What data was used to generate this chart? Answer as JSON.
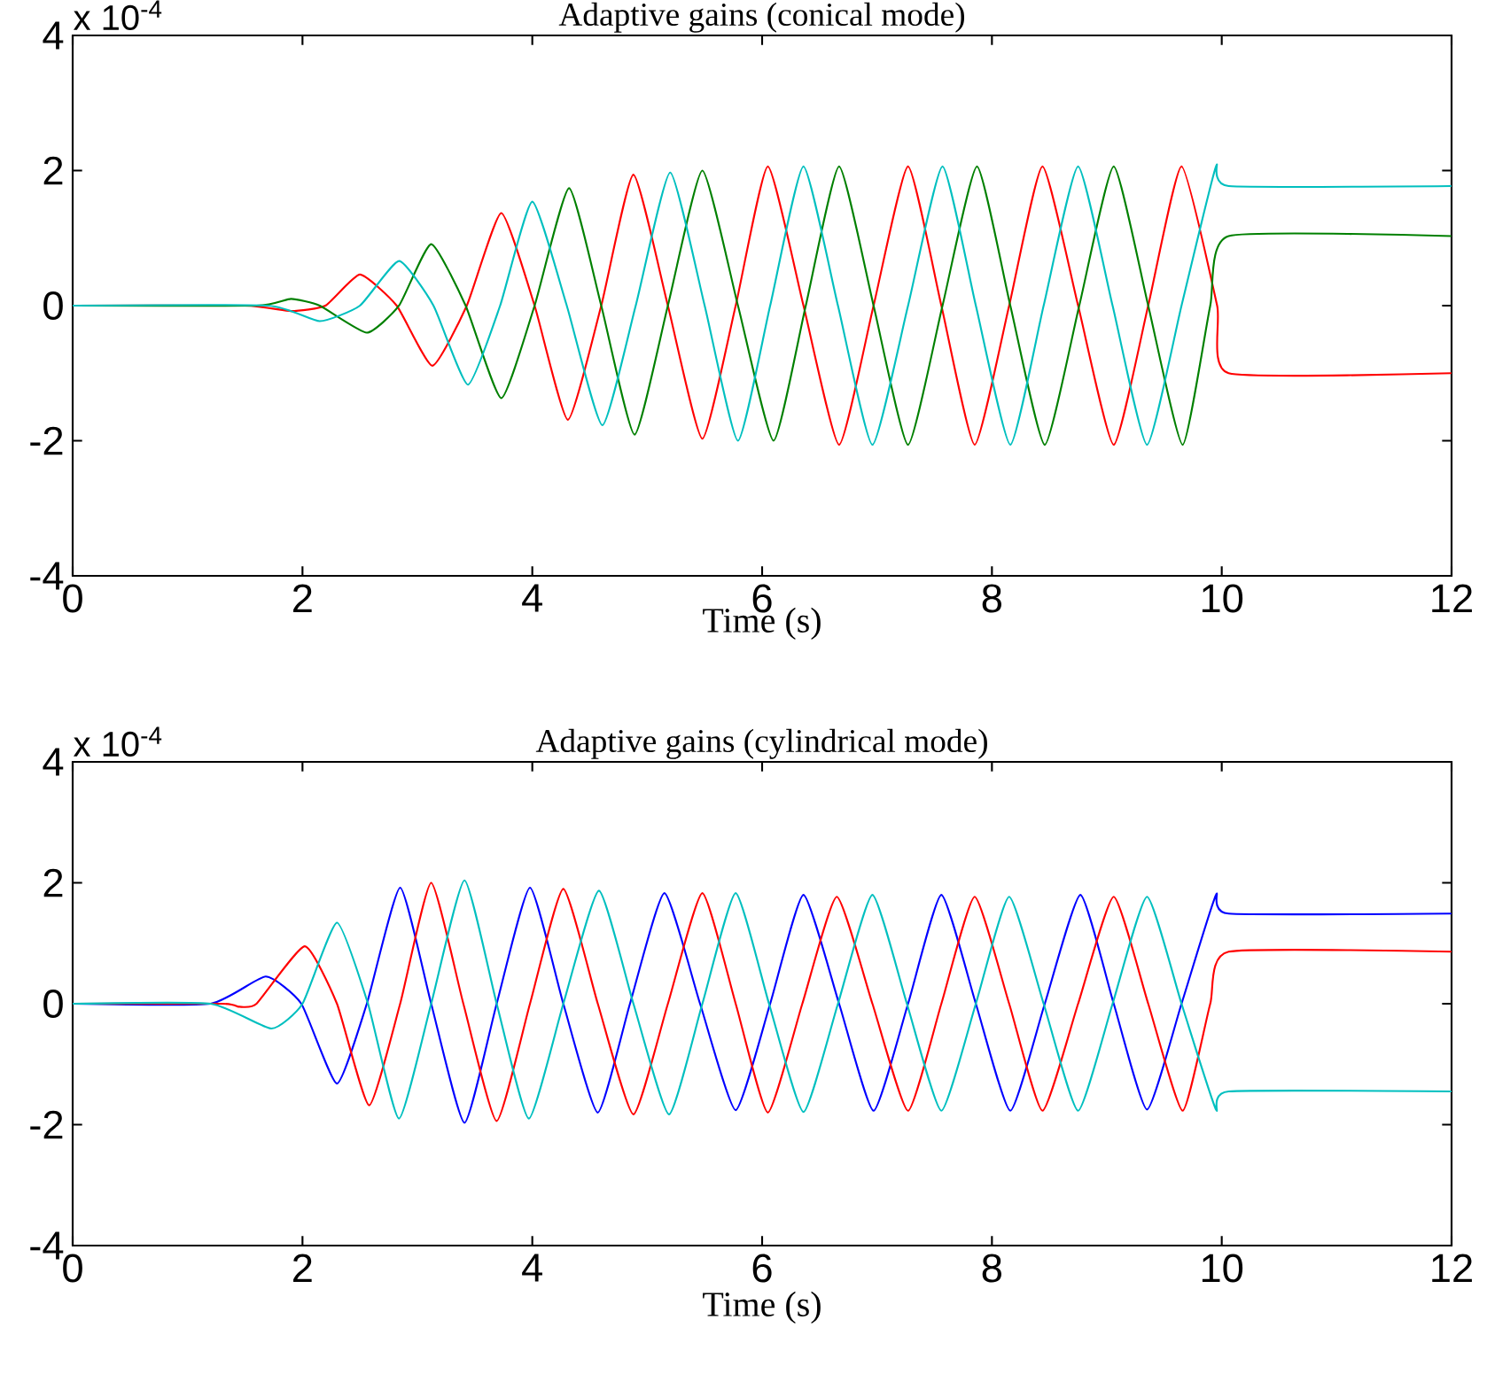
{
  "chart_data": [
    {
      "type": "line",
      "title": "Adaptive gains (conical mode)",
      "xlabel": "Time (s)",
      "annotations": [
        "x 10$^{-4}$"
      ],
      "xlim": [
        0,
        12
      ],
      "xticks": [
        0,
        2,
        4,
        6,
        8,
        10,
        12
      ],
      "ylim": [
        -4,
        4
      ],
      "yticks": [
        -4,
        -2,
        0,
        2,
        4
      ],
      "series": [
        {
          "color": "#ff0000",
          "x": [
            0,
            1.5,
            1.9,
            2.2,
            2.5,
            2.82,
            3.13,
            3.43,
            3.73,
            4.02,
            4.31,
            4.6,
            4.88,
            5.18,
            5.48,
            5.77,
            6.05,
            6.36,
            6.67,
            6.97,
            7.27,
            7.56,
            7.85,
            8.15,
            8.44,
            8.75,
            9.06,
            9.36,
            9.65,
            9.96,
            10.06,
            12
          ],
          "values": [
            0,
            0,
            -0.08,
            0,
            0.46,
            0,
            -0.89,
            0,
            1.37,
            0,
            -1.69,
            0,
            1.94,
            0,
            -1.97,
            0,
            2.06,
            0,
            -2.06,
            0,
            2.06,
            0,
            -2.06,
            0,
            2.06,
            0,
            -2.06,
            0,
            2.06,
            0,
            -1.0,
            -1.0
          ]
        },
        {
          "color": "#008000",
          "x": [
            0,
            1.6,
            1.9,
            2.15,
            2.56,
            2.84,
            3.12,
            3.42,
            3.73,
            4.02,
            4.32,
            4.6,
            4.89,
            5.18,
            5.48,
            5.79,
            6.1,
            6.38,
            6.67,
            6.97,
            7.27,
            7.57,
            7.87,
            8.16,
            8.46,
            8.76,
            9.06,
            9.36,
            9.66,
            9.9,
            10.06,
            12
          ],
          "values": [
            0,
            0,
            0.1,
            0,
            -0.4,
            0,
            0.91,
            0,
            -1.37,
            0,
            1.74,
            0,
            -1.91,
            0,
            2.0,
            0,
            -2.0,
            0,
            2.06,
            0,
            -2.06,
            0,
            2.06,
            0,
            -2.06,
            0,
            2.06,
            0,
            -2.06,
            0,
            1.03,
            1.03
          ]
        },
        {
          "color": "#00bfbf",
          "x": [
            0,
            1.7,
            2.15,
            2.5,
            2.84,
            3.14,
            3.44,
            3.72,
            4.0,
            4.3,
            4.61,
            4.9,
            5.2,
            5.5,
            5.79,
            6.07,
            6.36,
            6.66,
            6.96,
            7.27,
            7.57,
            7.86,
            8.16,
            8.45,
            8.75,
            9.05,
            9.35,
            9.65,
            9.95,
            10.06,
            12
          ],
          "values": [
            0,
            0,
            -0.23,
            0,
            0.66,
            0,
            -1.17,
            0,
            1.54,
            0,
            -1.77,
            0,
            1.97,
            0,
            -2.0,
            0,
            2.06,
            0,
            -2.06,
            0,
            2.06,
            0,
            -2.06,
            0,
            2.06,
            0,
            -2.06,
            0,
            2.06,
            1.77,
            1.77
          ]
        }
      ]
    },
    {
      "type": "line",
      "title": "Adaptive gains (cylindrical mode)",
      "xlabel": "Time (s)",
      "annotations": [
        "x 10$^{-4}$"
      ],
      "xlim": [
        0,
        12
      ],
      "xticks": [
        0,
        2,
        4,
        6,
        8,
        10,
        12
      ],
      "ylim": [
        -4,
        4
      ],
      "yticks": [
        -4,
        -2,
        0,
        2,
        4
      ],
      "series": [
        {
          "color": "#0000ff",
          "x": [
            0,
            1.2,
            1.68,
            1.99,
            2.3,
            2.56,
            2.85,
            3.12,
            3.41,
            3.69,
            3.98,
            4.27,
            4.57,
            4.85,
            5.15,
            5.46,
            5.77,
            6.07,
            6.36,
            6.67,
            6.97,
            7.27,
            7.56,
            7.86,
            8.16,
            8.46,
            8.77,
            9.06,
            9.35,
            9.65,
            9.95,
            10.06,
            12
          ],
          "values": [
            0,
            0,
            0.45,
            0,
            -1.32,
            0,
            1.92,
            0,
            -1.97,
            0,
            1.92,
            0,
            -1.8,
            0,
            1.83,
            0,
            -1.76,
            0,
            1.8,
            0,
            -1.77,
            0,
            1.8,
            0,
            -1.77,
            0,
            1.8,
            0,
            -1.75,
            0,
            1.8,
            1.49,
            1.49
          ]
        },
        {
          "color": "#ff0000",
          "x": [
            0,
            1.3,
            1.45,
            1.6,
            2.02,
            2.3,
            2.58,
            2.85,
            3.12,
            3.4,
            3.69,
            3.98,
            4.27,
            4.57,
            4.88,
            5.18,
            5.48,
            5.77,
            6.05,
            6.35,
            6.65,
            6.96,
            7.27,
            7.56,
            7.85,
            8.15,
            8.44,
            8.75,
            9.06,
            9.36,
            9.66,
            9.9,
            10.06,
            12
          ],
          "values": [
            0,
            0,
            -0.05,
            0,
            0.95,
            0,
            -1.68,
            0,
            2.0,
            0,
            -1.94,
            0,
            1.9,
            0,
            -1.83,
            0,
            1.83,
            0,
            -1.8,
            0,
            1.77,
            0,
            -1.77,
            0,
            1.77,
            0,
            -1.77,
            0,
            1.77,
            0,
            -1.77,
            0,
            0.86,
            0.86
          ]
        },
        {
          "color": "#00bfbf",
          "x": [
            0,
            1.2,
            1.73,
            2.0,
            2.3,
            2.57,
            2.84,
            3.12,
            3.41,
            3.69,
            3.97,
            4.27,
            4.58,
            4.88,
            5.19,
            5.48,
            5.77,
            6.06,
            6.36,
            6.66,
            6.96,
            7.26,
            7.56,
            7.86,
            8.15,
            8.45,
            8.75,
            9.05,
            9.35,
            9.65,
            9.95,
            10.06,
            12
          ],
          "values": [
            0,
            0,
            -0.41,
            0,
            1.34,
            0,
            -1.9,
            0,
            2.04,
            0,
            -1.9,
            0,
            1.87,
            0,
            -1.83,
            0,
            1.83,
            0,
            -1.79,
            0,
            1.8,
            0,
            -1.77,
            0,
            1.77,
            0,
            -1.77,
            0,
            1.77,
            0,
            -1.75,
            -1.45,
            -1.45
          ]
        }
      ]
    }
  ]
}
